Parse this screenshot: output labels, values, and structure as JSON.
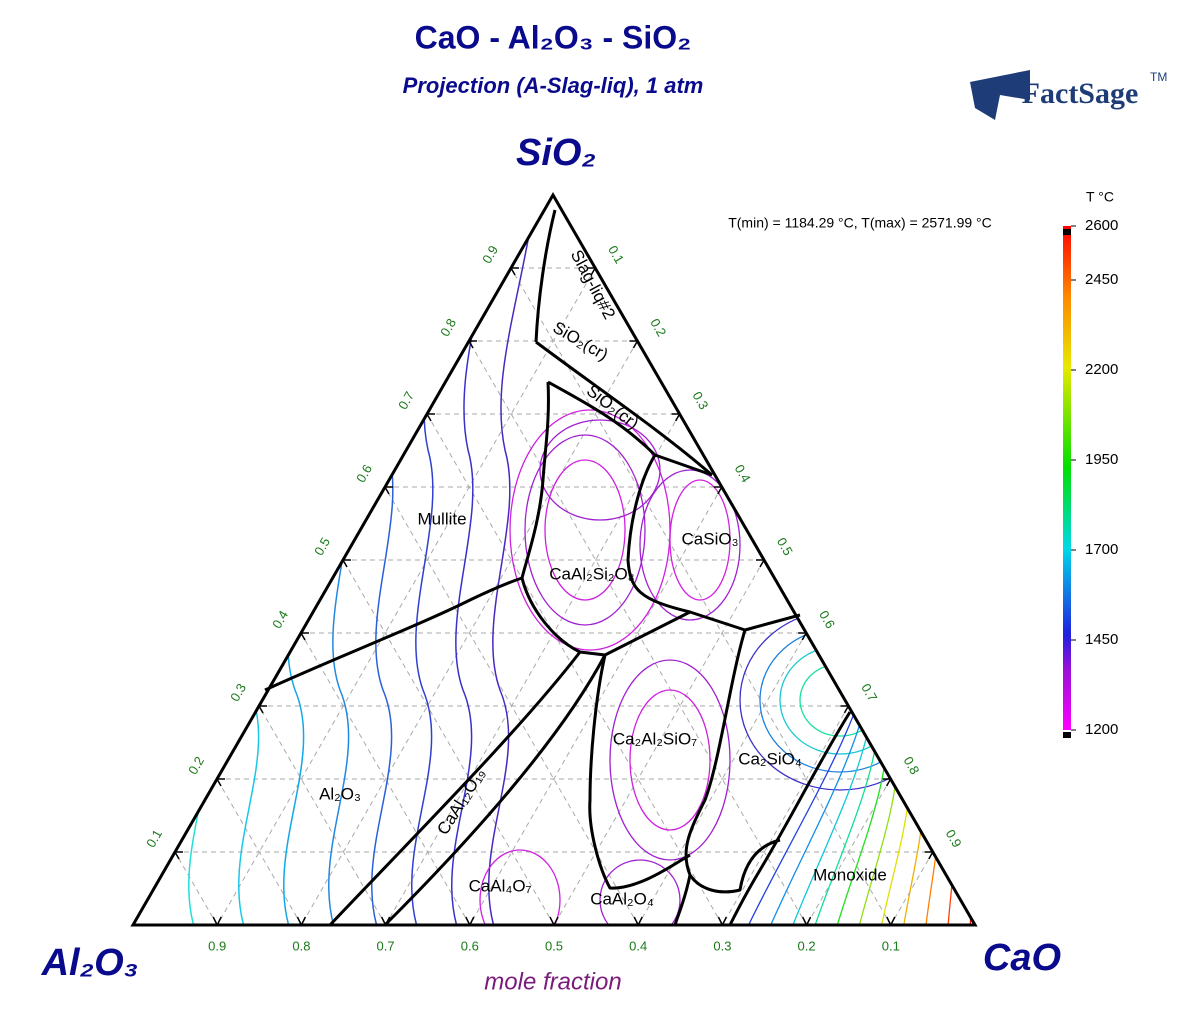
{
  "title": "CaO - Al₂O₃ - SiO₂",
  "subtitle": "Projection (A-Slag-liq), 1 atm",
  "logo": {
    "name": "FactSage",
    "mark": "TM"
  },
  "corners": {
    "top": "SiO₂",
    "left": "Al₂O₃",
    "right": "CaO"
  },
  "axis_label": "mole fraction",
  "temperature_range": "T(min) = 1184.29 °C, T(max) = 2571.99 °C",
  "axes": {
    "bottom": [
      0.9,
      0.8,
      0.7,
      0.6,
      0.5,
      0.4,
      0.3,
      0.2,
      0.1
    ],
    "left": [
      0.1,
      0.2,
      0.3,
      0.4,
      0.5,
      0.6,
      0.7,
      0.8,
      0.9
    ],
    "right": [
      0.1,
      0.2,
      0.3,
      0.4,
      0.5,
      0.6,
      0.7,
      0.8,
      0.9
    ]
  },
  "phases": [
    "Slag-liq#2",
    "SiO₂(cr)",
    "SiO₂(cr)",
    "Mullite",
    "CaAl₂Si₂O₈",
    "CaSiO₃",
    "Al₂O₃",
    "CaAl₁₂O₁₉",
    "CaAl₄O₇",
    "CaAl₂O₄",
    "Ca₂Al₂SiO₇",
    "Ca₂SiO₄",
    "Monoxide"
  ],
  "colorbar": {
    "title": "T °C",
    "lim": [
      1200,
      2600
    ],
    "ticks": [
      1200,
      1450,
      1700,
      1950,
      2200,
      2450,
      2600
    ]
  }
}
